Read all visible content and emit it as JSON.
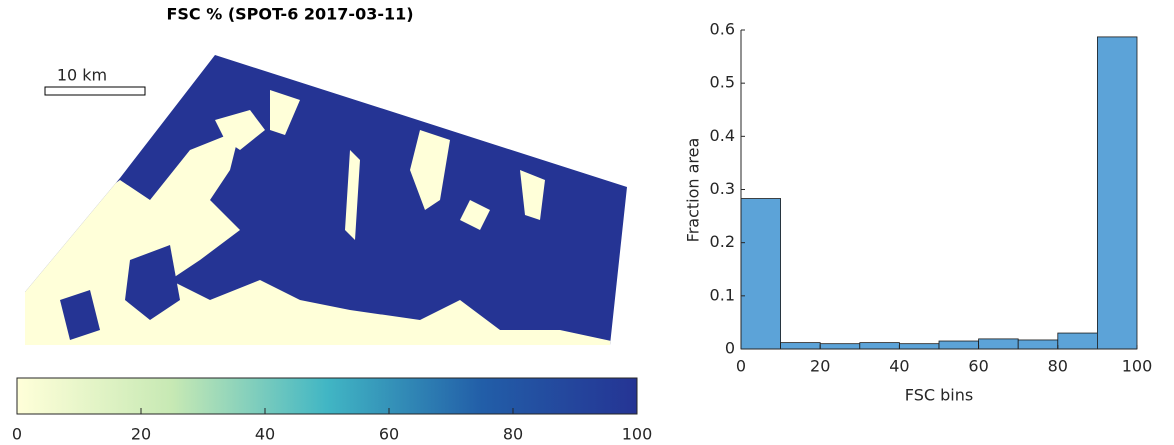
{
  "chart_data": [
    {
      "type": "map",
      "title": "FSC % (SPOT-6 2017-03-11)",
      "scale_bar_label": "10 km",
      "colormap": [
        "#ffffd9",
        "#c7e9b4",
        "#41b6c4",
        "#225ea8",
        "#253494"
      ],
      "clim": [
        0,
        100
      ],
      "cticks": [
        0,
        20,
        40,
        60,
        80,
        100
      ]
    },
    {
      "type": "histogram",
      "xlabel": "FSC bins",
      "ylabel": "Fraction area",
      "bins": [
        0,
        10,
        20,
        30,
        40,
        50,
        60,
        70,
        80,
        90,
        100
      ],
      "values": [
        0.283,
        0.012,
        0.01,
        0.012,
        0.01,
        0.015,
        0.019,
        0.017,
        0.03,
        0.587
      ],
      "color": "#5ca3d8",
      "xlim": [
        0,
        100
      ],
      "ylim": [
        0,
        0.6
      ],
      "xticks": [
        0,
        20,
        40,
        60,
        80,
        100
      ],
      "yticks": [
        0,
        0.1,
        0.2,
        0.3,
        0.4,
        0.5,
        0.6
      ]
    }
  ]
}
